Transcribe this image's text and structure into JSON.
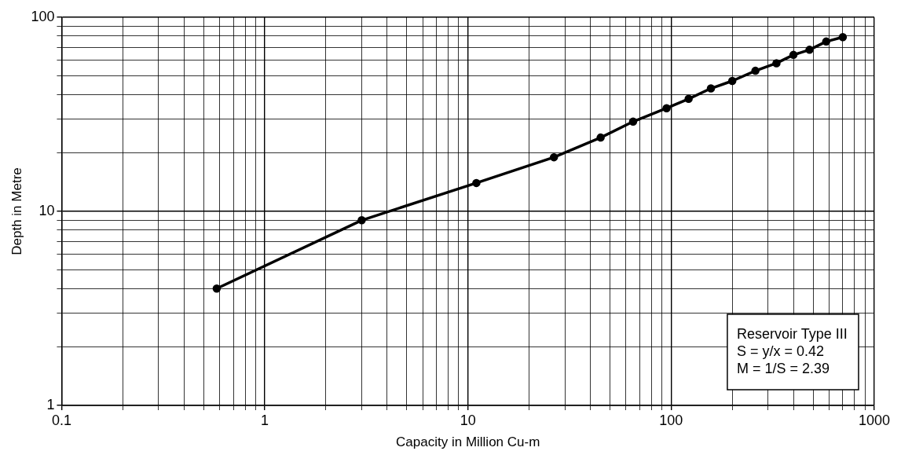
{
  "chart_data": {
    "type": "line",
    "xlabel": "Capacity in Million Cu-m",
    "ylabel": "Depth in Metre",
    "x": [
      0.58,
      3,
      11,
      26.5,
      45,
      65,
      95,
      122,
      157,
      200,
      260,
      330,
      400,
      480,
      580,
      700
    ],
    "series": [
      {
        "color": "#000000",
        "values": [
          4,
          9,
          14,
          19,
          24,
          29,
          34,
          38,
          43,
          47,
          53,
          58,
          64,
          68,
          75,
          79
        ]
      }
    ],
    "log": "xy",
    "xlim": [
      0.1,
      1000
    ],
    "ylim": [
      1,
      100
    ],
    "xticks": [
      0.1,
      {
        "value": 0.2,
        "label": null
      },
      {
        "value": 0.3,
        "label": null
      },
      {
        "value": 0.4,
        "label": null
      },
      {
        "value": 0.5,
        "label": null
      },
      {
        "value": 0.6,
        "label": null
      },
      {
        "value": 0.7,
        "label": null
      },
      {
        "value": 0.8,
        "label": null
      },
      {
        "value": 0.9,
        "label": null
      },
      1,
      {
        "value": 2,
        "label": null
      },
      {
        "value": 3,
        "label": null
      },
      {
        "value": 4,
        "label": null
      },
      {
        "value": 5,
        "label": null
      },
      {
        "value": 6,
        "label": null
      },
      {
        "value": 7,
        "label": null
      },
      {
        "value": 8,
        "label": null
      },
      {
        "value": 9,
        "label": null
      },
      10,
      {
        "value": 20,
        "label": null
      },
      {
        "value": 30,
        "label": null
      },
      {
        "value": 40,
        "label": null
      },
      {
        "value": 50,
        "label": null
      },
      {
        "value": 60,
        "label": null
      },
      {
        "value": 70,
        "label": null
      },
      {
        "value": 80,
        "label": null
      },
      {
        "value": 90,
        "label": null
      },
      100,
      {
        "value": 200,
        "label": null
      },
      {
        "value": 300,
        "label": null
      },
      {
        "value": 400,
        "label": null
      },
      {
        "value": 500,
        "label": null
      },
      {
        "value": 600,
        "label": null
      },
      {
        "value": 700,
        "label": null
      },
      {
        "value": 800,
        "label": null
      },
      {
        "value": 900,
        "label": null
      },
      1000
    ],
    "yticks": [
      1,
      {
        "value": 2,
        "label": null
      },
      {
        "value": 3,
        "label": null
      },
      {
        "value": 4,
        "label": null
      },
      {
        "value": 5,
        "label": null
      },
      {
        "value": 6,
        "label": null
      },
      {
        "value": 7,
        "label": null
      },
      {
        "value": 8,
        "label": null
      },
      {
        "value": 9,
        "label": null
      },
      10,
      {
        "value": 20,
        "label": null
      },
      {
        "value": 30,
        "label": null
      },
      {
        "value": 40,
        "label": null
      },
      {
        "value": 50,
        "label": null
      },
      {
        "value": 60,
        "label": null
      },
      {
        "value": 70,
        "label": null
      },
      {
        "value": 80,
        "label": null
      },
      {
        "value": 90,
        "label": null
      },
      100
    ],
    "grid": true,
    "marker": "circle",
    "line_style": "solid",
    "annotations": [
      "Reservoir Type III",
      "S = y/x = 0.42",
      "M = 1/S = 2.39"
    ]
  }
}
